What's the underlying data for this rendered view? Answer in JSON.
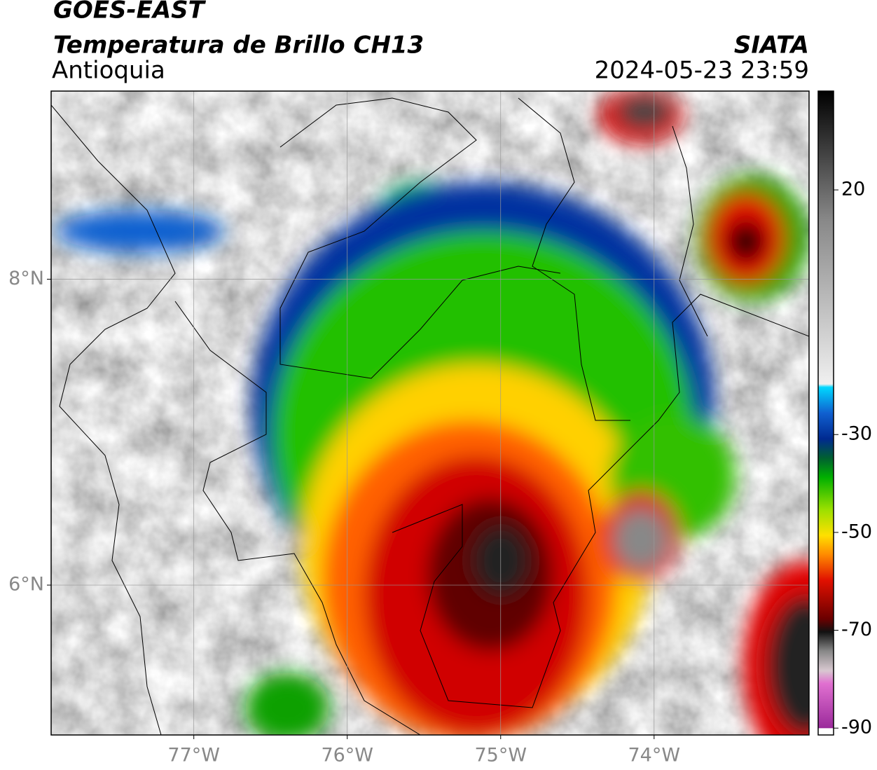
{
  "header": {
    "satellite": "GOES-EAST",
    "product": "Temperatura de Brillo CH13",
    "region": "Antioquia",
    "agency": "SIATA",
    "timestamp": "2024-05-23 23:59"
  },
  "map": {
    "lon_lim": [
      -77.93,
      -72.99
    ],
    "lat_lim": [
      5.02,
      9.23
    ],
    "lon_ticks": [
      {
        "value": -77,
        "label": "77°W"
      },
      {
        "value": -76,
        "label": "76°W"
      },
      {
        "value": -75,
        "label": "75°W"
      },
      {
        "value": -74,
        "label": "74°W"
      }
    ],
    "lat_ticks": [
      {
        "value": 8,
        "label": "8°N"
      },
      {
        "value": 6,
        "label": "6°N"
      }
    ]
  },
  "colorbar": {
    "lim": [
      -91.4,
      40.2
    ],
    "ticks": [
      20,
      -30,
      -50,
      -70,
      -90
    ]
  }
}
